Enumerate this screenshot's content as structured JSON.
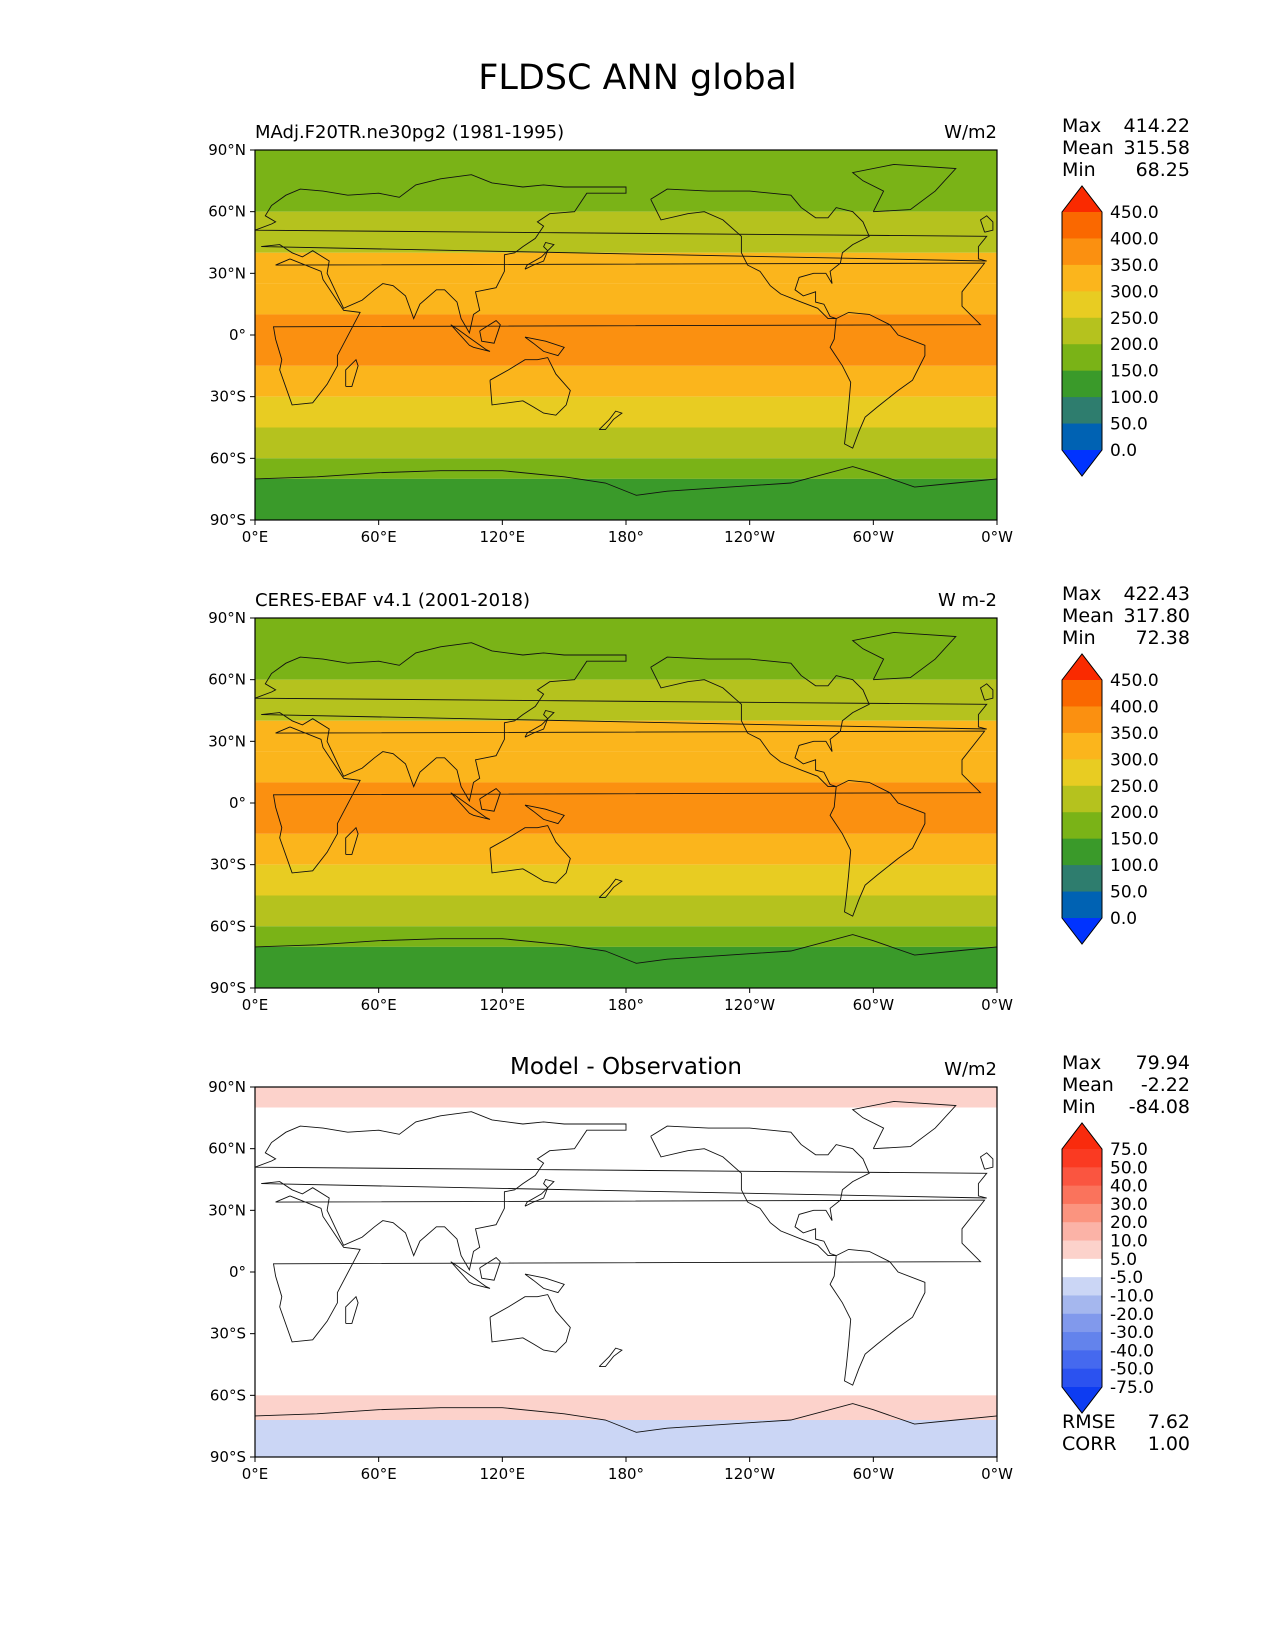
{
  "title": "FLDSC ANN global",
  "x_ticks": [
    "0°E",
    "60°E",
    "120°E",
    "180°",
    "120°W",
    "60°W",
    "0°W"
  ],
  "y_ticks": [
    "90°N",
    "60°N",
    "30°N",
    "0°",
    "30°S",
    "60°S",
    "90°S"
  ],
  "panels": [
    {
      "title_left": "MAdj.F20TR.ne30pg2 (1981-1995)",
      "title_center": "",
      "units": "W/m2",
      "stats": [
        {
          "label": "Max",
          "value": "414.22"
        },
        {
          "label": "Mean",
          "value": "315.58"
        },
        {
          "label": "Min",
          "value": "68.25"
        }
      ],
      "extra_stats": [],
      "colorbar": {
        "labels": [
          "450.0",
          "400.0",
          "350.0",
          "300.0",
          "250.0",
          "200.0",
          "150.0",
          "100.0",
          "50.0",
          "0.0"
        ],
        "colors": [
          "#0033ff",
          "#0062b3",
          "#2e7d6e",
          "#3a9a2a",
          "#7ab317",
          "#b5c21e",
          "#e8cc22",
          "#fbb51c",
          "#fb9010",
          "#fa6800",
          "#fa2a00"
        ]
      }
    },
    {
      "title_left": "CERES-EBAF v4.1 (2001-2018)",
      "title_center": "",
      "units": "W m-2",
      "stats": [
        {
          "label": "Max",
          "value": "422.43"
        },
        {
          "label": "Mean",
          "value": "317.80"
        },
        {
          "label": "Min",
          "value": "72.38"
        }
      ],
      "extra_stats": [],
      "colorbar": {
        "labels": [
          "450.0",
          "400.0",
          "350.0",
          "300.0",
          "250.0",
          "200.0",
          "150.0",
          "100.0",
          "50.0",
          "0.0"
        ],
        "colors": [
          "#0033ff",
          "#0062b3",
          "#2e7d6e",
          "#3a9a2a",
          "#7ab317",
          "#b5c21e",
          "#e8cc22",
          "#fbb51c",
          "#fb9010",
          "#fa6800",
          "#fa2a00"
        ]
      }
    },
    {
      "title_left": "",
      "title_center": "Model - Observation",
      "units": "W/m2",
      "stats": [
        {
          "label": "Max",
          "value": "79.94"
        },
        {
          "label": "Mean",
          "value": "-2.22"
        },
        {
          "label": "Min",
          "value": "-84.08"
        }
      ],
      "extra_stats": [
        {
          "label": "RMSE",
          "value": "7.62"
        },
        {
          "label": "CORR",
          "value": "1.00"
        }
      ],
      "colorbar": {
        "labels": [
          "75.0",
          "50.0",
          "40.0",
          "30.0",
          "20.0",
          "10.0",
          "5.0",
          "-5.0",
          "-10.0",
          "-20.0",
          "-30.0",
          "-40.0",
          "-50.0",
          "-75.0"
        ],
        "colors": [
          "#0d3cf2",
          "#2b52f0",
          "#4569ef",
          "#6383ec",
          "#8199ec",
          "#a5b7ee",
          "#cbd6f5",
          "#ffffff",
          "#fcd2cb",
          "#fbb3a7",
          "#fb947f",
          "#fa735c",
          "#fa5540",
          "#fa3a22",
          "#f92b0d"
        ]
      }
    }
  ],
  "chart_data": [
    {
      "type": "heatmap",
      "title": "MAdj.F20TR.ne30pg2 (1981-1995)",
      "units": "W/m2",
      "xlim": [
        0,
        360
      ],
      "ylim": [
        -90,
        90
      ],
      "levels": [
        0,
        50,
        100,
        150,
        200,
        250,
        300,
        350,
        400,
        450
      ],
      "zonal_bands": [
        {
          "lat": [
            60,
            90
          ],
          "value": 175
        },
        {
          "lat": [
            40,
            60
          ],
          "value": 225
        },
        {
          "lat": [
            25,
            40
          ],
          "value": 300
        },
        {
          "lat": [
            10,
            25
          ],
          "value": 340
        },
        {
          "lat": [
            -15,
            10
          ],
          "value": 380
        },
        {
          "lat": [
            -30,
            -15
          ],
          "value": 330
        },
        {
          "lat": [
            -45,
            -30
          ],
          "value": 290
        },
        {
          "lat": [
            -60,
            -45
          ],
          "value": 240
        },
        {
          "lat": [
            -70,
            -60
          ],
          "value": 190
        },
        {
          "lat": [
            -90,
            -70
          ],
          "value": 110
        }
      ],
      "stats": {
        "max": 414.22,
        "mean": 315.58,
        "min": 68.25
      }
    },
    {
      "type": "heatmap",
      "title": "CERES-EBAF v4.1 (2001-2018)",
      "units": "W m-2",
      "xlim": [
        0,
        360
      ],
      "ylim": [
        -90,
        90
      ],
      "levels": [
        0,
        50,
        100,
        150,
        200,
        250,
        300,
        350,
        400,
        450
      ],
      "zonal_bands": [
        {
          "lat": [
            60,
            90
          ],
          "value": 175
        },
        {
          "lat": [
            40,
            60
          ],
          "value": 230
        },
        {
          "lat": [
            25,
            40
          ],
          "value": 305
        },
        {
          "lat": [
            10,
            25
          ],
          "value": 345
        },
        {
          "lat": [
            -15,
            10
          ],
          "value": 385
        },
        {
          "lat": [
            -30,
            -15
          ],
          "value": 335
        },
        {
          "lat": [
            -45,
            -30
          ],
          "value": 295
        },
        {
          "lat": [
            -60,
            -45
          ],
          "value": 245
        },
        {
          "lat": [
            -70,
            -60
          ],
          "value": 190
        },
        {
          "lat": [
            -90,
            -70
          ],
          "value": 110
        }
      ],
      "stats": {
        "max": 422.43,
        "mean": 317.8,
        "min": 72.38
      }
    },
    {
      "type": "heatmap",
      "title": "Model - Observation",
      "units": "W/m2",
      "xlim": [
        0,
        360
      ],
      "ylim": [
        -90,
        90
      ],
      "levels": [
        -75,
        -50,
        -40,
        -30,
        -20,
        -10,
        -5,
        5,
        10,
        20,
        30,
        40,
        50,
        75
      ],
      "zonal_bands": [
        {
          "lat": [
            80,
            90
          ],
          "value": 7
        },
        {
          "lat": [
            -60,
            80
          ],
          "value": 0
        },
        {
          "lat": [
            -72,
            -60
          ],
          "value": 7
        },
        {
          "lat": [
            -90,
            -72
          ],
          "value": -7
        }
      ],
      "stats": {
        "max": 79.94,
        "mean": -2.22,
        "min": -84.08,
        "rmse": 7.62,
        "corr": 1.0
      }
    }
  ]
}
